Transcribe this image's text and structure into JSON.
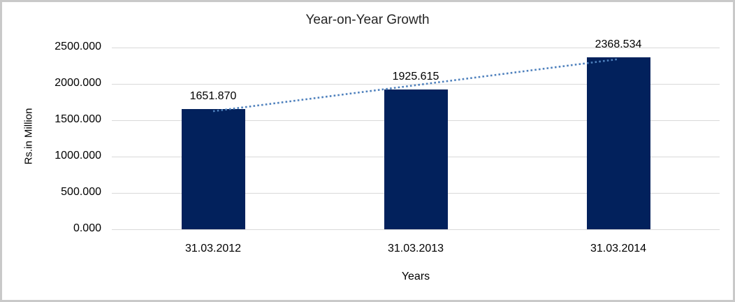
{
  "figure": {
    "title": "Year-on-Year Growth",
    "x_axis_title": "Years",
    "y_axis_title": "Rs.in Million"
  },
  "chart_data": {
    "type": "bar",
    "title": "Year-on-Year Growth",
    "xlabel": "Years",
    "ylabel": "Rs.in Million",
    "categories": [
      "31.03.2012",
      "31.03.2013",
      "31.03.2014"
    ],
    "series": [
      {
        "name": "Rs.in Million",
        "type": "bar",
        "values": [
          1651.87,
          1925.615,
          2368.534
        ]
      },
      {
        "name": "linear-trendline",
        "type": "dotted-line",
        "fit": "linear",
        "through_values": [
          1651.87,
          1925.615,
          2368.534
        ]
      }
    ],
    "data_labels": [
      "1651.870",
      "1925.615",
      "2368.534"
    ],
    "ylim": [
      0,
      2500
    ],
    "ytick_step": 500,
    "ytick_labels": [
      "0.000",
      "500.000",
      "1000.000",
      "1500.000",
      "2000.000",
      "2500.000"
    ],
    "grid": "horizontal",
    "legend": "none",
    "colors": {
      "bar": "#02215c",
      "trendline": "#4f81bd",
      "gridline": "#d9d9d9",
      "border": "#c9c9c9",
      "text": "#000000"
    }
  }
}
